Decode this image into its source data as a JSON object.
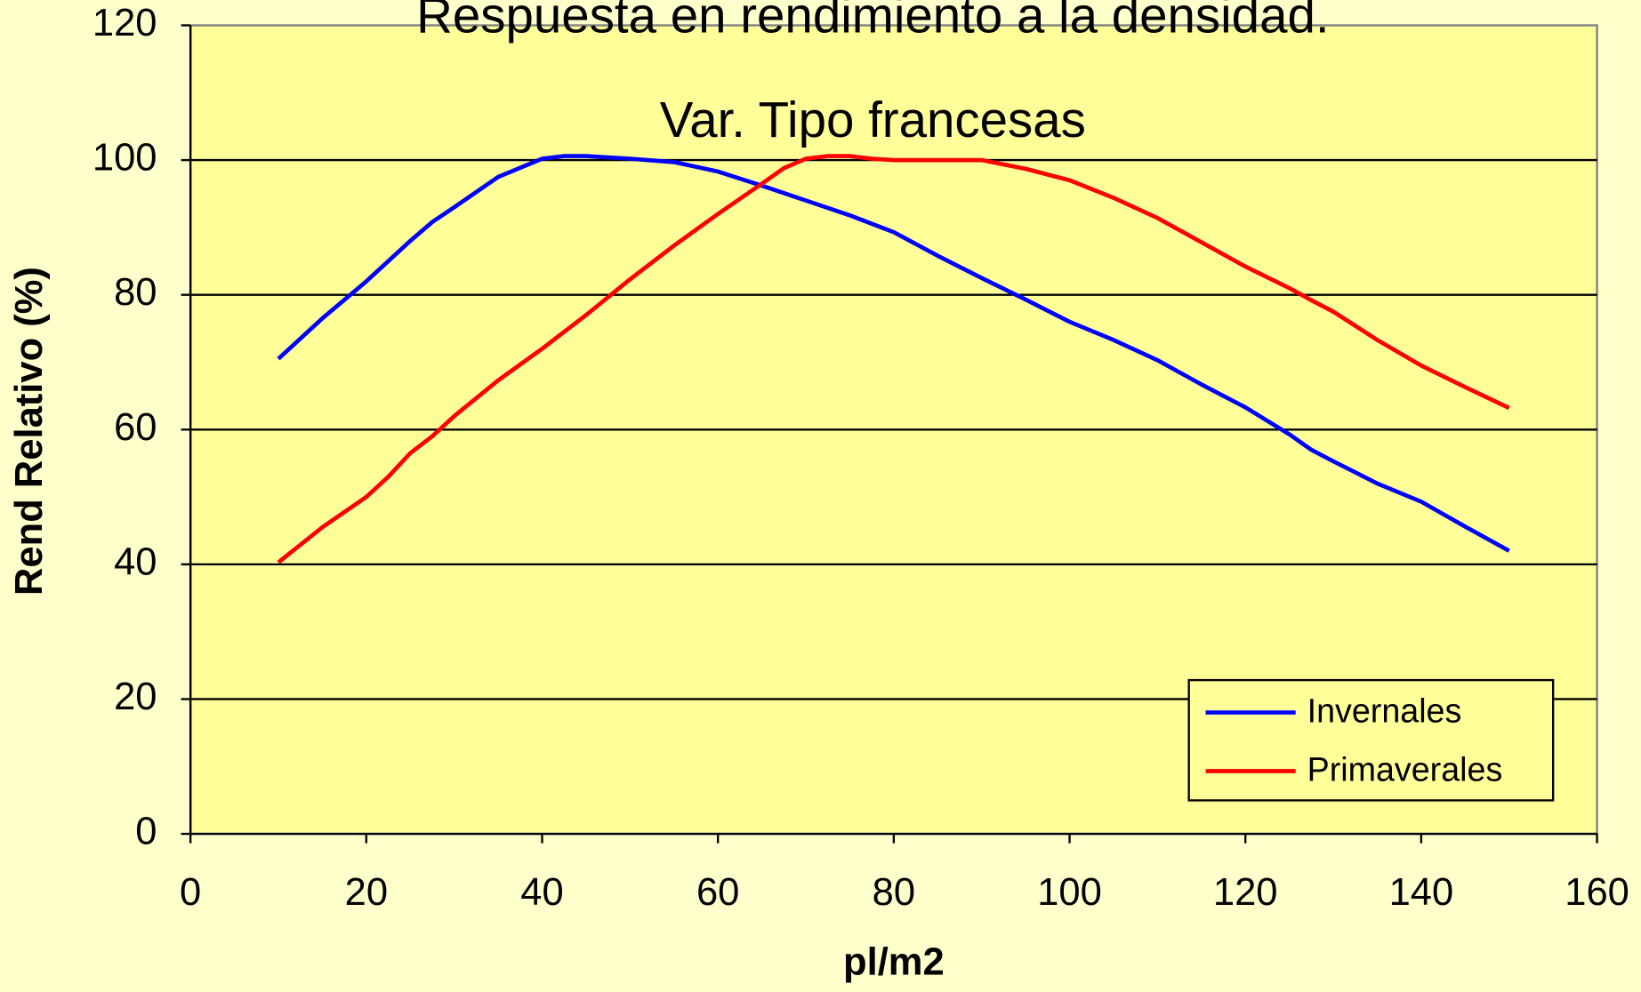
{
  "chart_data": {
    "type": "line",
    "title": "Respuesta en rendimiento a la densidad.",
    "subtitle": "Var. Tipo francesas",
    "x_label": "pl/m2",
    "y_label": "Rend Relativo (%)",
    "xlim": [
      0,
      160
    ],
    "xticks": [
      0,
      20,
      40,
      60,
      80,
      100,
      120,
      140,
      160
    ],
    "ylim": [
      0,
      120
    ],
    "yticks": [
      0,
      20,
      40,
      60,
      80,
      100,
      120
    ],
    "grid": true,
    "legend": "lower right",
    "series": [
      {
        "name": "Invernales",
        "color": "#0000ff",
        "x": [
          10,
          15,
          20,
          25,
          27.5,
          30,
          35,
          40,
          42.5,
          45,
          50,
          55,
          60,
          65,
          70,
          75,
          80,
          85,
          90,
          95,
          100,
          105,
          110,
          115,
          120,
          125,
          127.5,
          130,
          135,
          140,
          145,
          150
        ],
        "values": [
          70.5,
          76.5,
          82,
          88,
          90.8,
          93,
          97.5,
          100.2,
          100.6,
          100.6,
          100.2,
          99.7,
          98.3,
          96.2,
          94,
          91.8,
          89.3,
          85.8,
          82.5,
          79.3,
          76,
          73.3,
          70.3,
          66.7,
          63.3,
          59.3,
          57,
          55.3,
          52,
          49.3,
          45.6,
          42
        ]
      },
      {
        "name": "Primaverales",
        "color": "#ff0000",
        "x": [
          10,
          15,
          20,
          22.5,
          25,
          27.5,
          30,
          35,
          40,
          45,
          50,
          55,
          60,
          65,
          67.5,
          70,
          72.5,
          75,
          77.5,
          80,
          85,
          90,
          95,
          100,
          105,
          110,
          115,
          120,
          125,
          127.5,
          130,
          135,
          140,
          145,
          150
        ],
        "values": [
          40.3,
          45.5,
          50,
          53,
          56.5,
          59,
          62,
          67.3,
          72,
          77,
          82.3,
          87.3,
          92,
          96.5,
          98.8,
          100.2,
          100.6,
          100.6,
          100.2,
          100,
          100,
          100,
          98.7,
          97,
          94.4,
          91.4,
          87.8,
          84.2,
          81,
          79.2,
          77.5,
          73.3,
          69.5,
          66.3,
          63.2
        ]
      }
    ]
  }
}
